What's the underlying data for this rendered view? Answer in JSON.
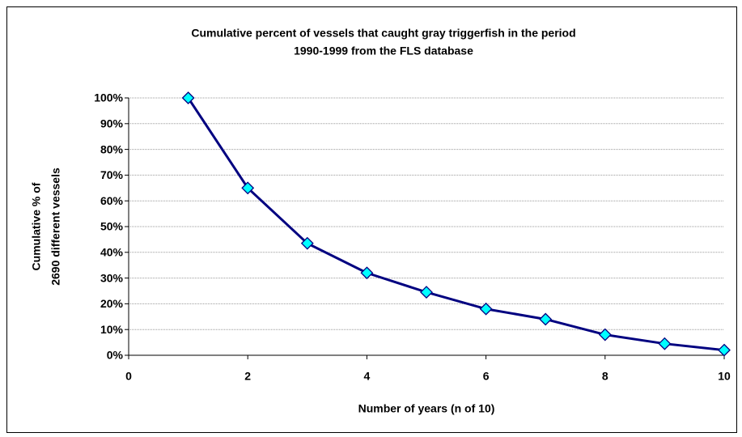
{
  "chart_data": {
    "type": "line",
    "title": [
      "Cumulative percent of vessels that caught gray triggerfish in the period",
      "1990-1999 from the FLS database"
    ],
    "x_label": "Number of years (n of 10)",
    "y_label": [
      "Cumulative % of",
      "2690 different vessels"
    ],
    "x": [
      1,
      2,
      3,
      4,
      5,
      6,
      7,
      8,
      9,
      10
    ],
    "series": [
      {
        "name": "Cumulative percent",
        "color": "#000080",
        "marker_color": "#00ffff",
        "values": [
          100,
          65,
          43.5,
          32,
          24.5,
          18,
          14,
          8,
          4.5,
          2
        ]
      }
    ],
    "xlim": [
      0,
      10
    ],
    "xticks": [
      0,
      2,
      4,
      6,
      8,
      10
    ],
    "ylim": [
      0,
      100
    ],
    "yticks": [
      {
        "value": 0,
        "label": "0%"
      },
      {
        "value": 10,
        "label": "10%"
      },
      {
        "value": 20,
        "label": "20%"
      },
      {
        "value": 30,
        "label": "30%"
      },
      {
        "value": 40,
        "label": "40%"
      },
      {
        "value": 50,
        "label": "50%"
      },
      {
        "value": 60,
        "label": "60%"
      },
      {
        "value": 70,
        "label": "70%"
      },
      {
        "value": 80,
        "label": "80%"
      },
      {
        "value": 90,
        "label": "90%"
      },
      {
        "value": 100,
        "label": "100%"
      }
    ],
    "grid": true
  }
}
